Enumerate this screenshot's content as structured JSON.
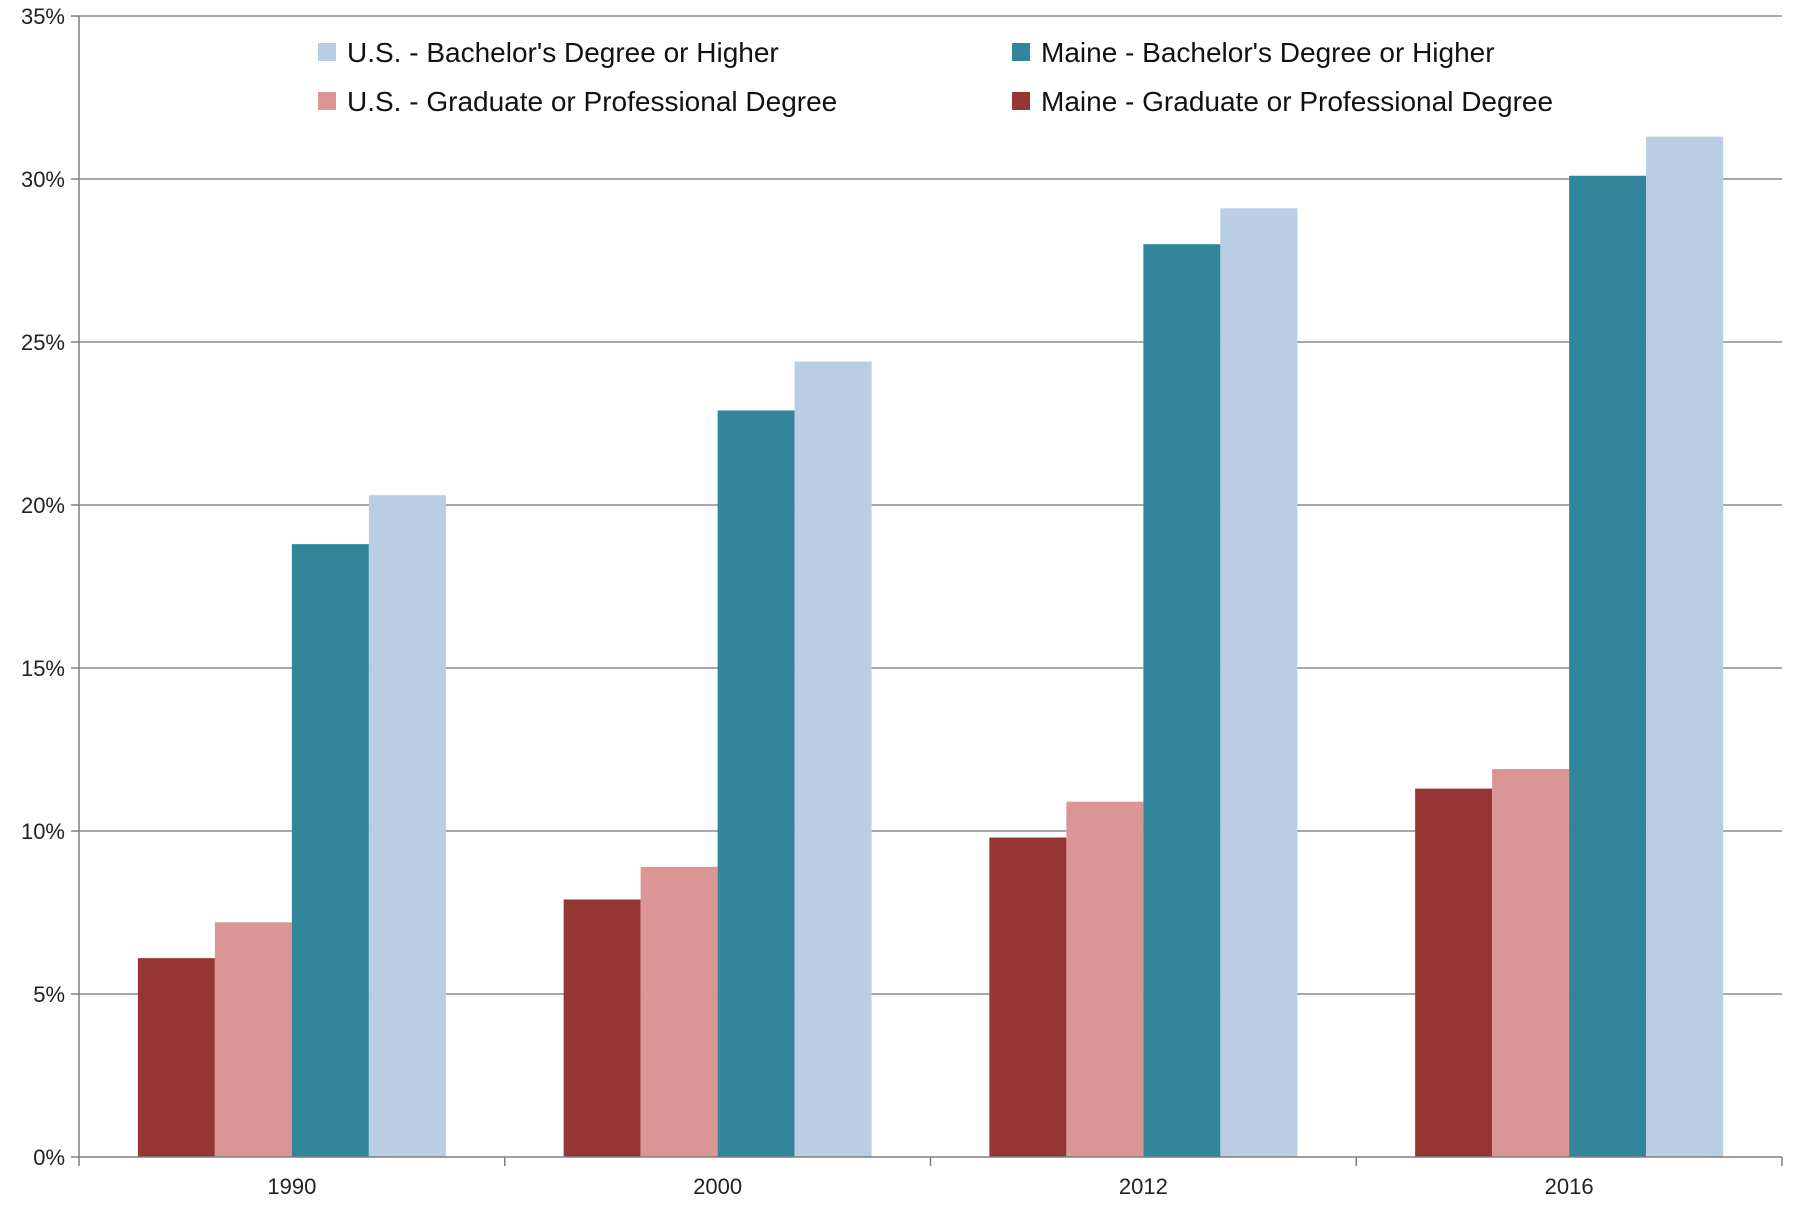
{
  "chart_data": {
    "type": "bar",
    "title": "",
    "xlabel": "",
    "ylabel": "",
    "categories": [
      "1990",
      "2000",
      "2012",
      "2016"
    ],
    "ylim": [
      0,
      35
    ],
    "y_ticks": [
      0,
      5,
      10,
      15,
      20,
      25,
      30,
      35
    ],
    "y_tick_labels": [
      "0%",
      "5%",
      "10%",
      "15%",
      "20%",
      "25%",
      "30%",
      "35%"
    ],
    "y_unit": "%",
    "grid": true,
    "legend_position": "top",
    "series": [
      {
        "name": "Maine - Graduate or Professional Degree",
        "color": "#963634",
        "values": [
          6.1,
          7.9,
          9.8,
          11.3
        ]
      },
      {
        "name": "U.S. - Graduate or Professional Degree",
        "color": "#DA9694",
        "values": [
          7.2,
          8.9,
          10.9,
          11.9
        ]
      },
      {
        "name": "Maine - Bachelor's Degree or Higher",
        "color": "#31869B",
        "values": [
          18.8,
          22.9,
          28.0,
          30.1
        ]
      },
      {
        "name": "U.S. - Bachelor's Degree or Higher",
        "color": "#B9CDE5",
        "values": [
          20.3,
          24.4,
          29.1,
          31.3
        ]
      }
    ],
    "legend_order": [
      3,
      2,
      1,
      0
    ]
  }
}
